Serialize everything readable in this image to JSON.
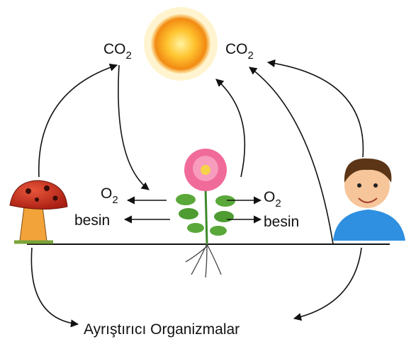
{
  "labels": {
    "co2_left": {
      "text": "CO",
      "subscript": "2"
    },
    "co2_right": {
      "text": "CO",
      "subscript": "2"
    },
    "o2_left": {
      "text": "O",
      "subscript": "2"
    },
    "o2_right": {
      "text": "O",
      "subscript": "2"
    },
    "besin_left": "besin",
    "besin_right": "besin",
    "decomposers": "Ayrıştırıcı Organizmalar"
  }
}
